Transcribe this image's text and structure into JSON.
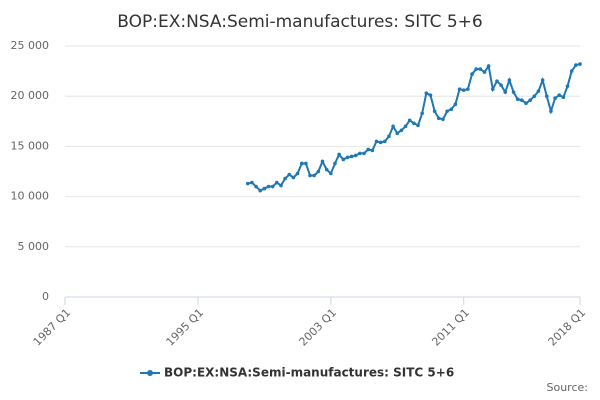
{
  "chart_data": {
    "type": "line",
    "title": "BOP:EX:NSA:Semi-manufactures: SITC 5+6",
    "x": [
      "1998 Q1",
      "1998 Q2",
      "1998 Q3",
      "1998 Q4",
      "1999 Q1",
      "1999 Q2",
      "1999 Q3",
      "1999 Q4",
      "2000 Q1",
      "2000 Q2",
      "2000 Q3",
      "2000 Q4",
      "2001 Q1",
      "2001 Q2",
      "2001 Q3",
      "2001 Q4",
      "2002 Q1",
      "2002 Q2",
      "2002 Q3",
      "2002 Q4",
      "2003 Q1",
      "2003 Q2",
      "2003 Q3",
      "2003 Q4",
      "2004 Q1",
      "2004 Q2",
      "2004 Q3",
      "2004 Q4",
      "2005 Q1",
      "2005 Q2",
      "2005 Q3",
      "2005 Q4",
      "2006 Q1",
      "2006 Q2",
      "2006 Q3",
      "2006 Q4",
      "2007 Q1",
      "2007 Q2",
      "2007 Q3",
      "2007 Q4",
      "2008 Q1",
      "2008 Q2",
      "2008 Q3",
      "2008 Q4",
      "2009 Q1",
      "2009 Q2",
      "2009 Q3",
      "2009 Q4",
      "2010 Q1",
      "2010 Q2",
      "2010 Q3",
      "2010 Q4",
      "2011 Q1",
      "2011 Q2",
      "2011 Q3",
      "2011 Q4",
      "2012 Q1",
      "2012 Q2",
      "2012 Q3",
      "2012 Q4",
      "2013 Q1",
      "2013 Q2",
      "2013 Q3",
      "2013 Q4",
      "2014 Q1",
      "2014 Q2",
      "2014 Q3",
      "2014 Q4",
      "2015 Q1",
      "2015 Q2",
      "2015 Q3",
      "2015 Q4",
      "2016 Q1",
      "2016 Q2",
      "2016 Q3",
      "2016 Q4",
      "2017 Q1",
      "2017 Q2",
      "2017 Q3",
      "2017 Q4",
      "2018 Q1"
    ],
    "series": [
      {
        "name": "BOP:EX:NSA:Semi-manufactures: SITC 5+6",
        "color": "#1f78b4",
        "values": [
          11300,
          11400,
          11000,
          10600,
          10800,
          11000,
          11000,
          11400,
          11100,
          11800,
          12200,
          11900,
          12300,
          13300,
          13300,
          12100,
          12100,
          12500,
          13500,
          12700,
          12300,
          13300,
          14200,
          13700,
          13900,
          14000,
          14100,
          14300,
          14300,
          14700,
          14600,
          15500,
          15400,
          15500,
          16000,
          17000,
          16300,
          16600,
          17000,
          17600,
          17300,
          17100,
          18300,
          20300,
          20100,
          18500,
          17800,
          17700,
          18500,
          18700,
          19200,
          20700,
          20600,
          20700,
          22200,
          22700,
          22700,
          22400,
          23000,
          20700,
          21500,
          21100,
          20400,
          21600,
          20400,
          19700,
          19600,
          19300,
          19600,
          20000,
          20500,
          21600,
          20000,
          18500,
          19800,
          20100,
          19900,
          21000,
          22500,
          23100,
          23200
        ]
      }
    ],
    "xlim": [
      "1987 Q1",
      "2018 Q1"
    ],
    "xticks": [
      "1987 Q1",
      "1995 Q1",
      "2003 Q1",
      "2011 Q1",
      "2018 Q1"
    ],
    "ylim": [
      0,
      25000
    ],
    "yticks": [
      0,
      {
        "value": 5000,
        "label": "5 000"
      },
      {
        "value": 10000,
        "label": "10 000"
      },
      {
        "value": 15000,
        "label": "15 000"
      },
      {
        "value": 20000,
        "label": "20 000"
      },
      {
        "value": 25000,
        "label": "25 000"
      }
    ],
    "grid": true,
    "legend": "bottom",
    "source": "Source:"
  }
}
